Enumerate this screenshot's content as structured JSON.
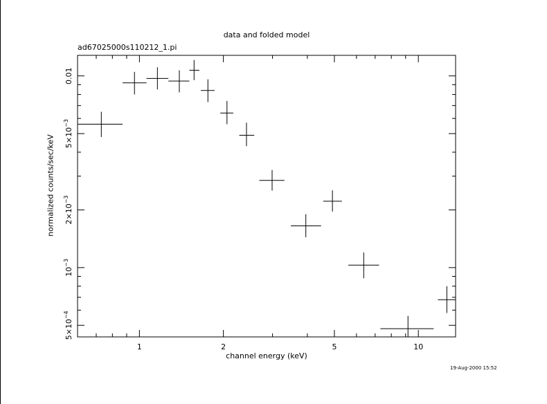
{
  "chart_data": {
    "type": "scatter",
    "title": "data and folded model",
    "subtitle": "ad67025000s110212_1.pi",
    "xlabel": "channel energy (keV)",
    "ylabel": "normalized counts/sec/keV",
    "x_scale": "log",
    "y_scale": "log",
    "xlim": [
      0.6,
      13.6
    ],
    "ylim": [
      0.000435,
      0.0128
    ],
    "x_ticks": [
      {
        "value": 1,
        "label": "1"
      },
      {
        "value": 2,
        "label": "2"
      },
      {
        "value": 5,
        "label": "5"
      },
      {
        "value": 10,
        "label": "10"
      }
    ],
    "y_ticks": [
      {
        "value": 0.01,
        "mant": "0.01",
        "exp": ""
      },
      {
        "value": 0.005,
        "mant": "5×10",
        "exp": "−3"
      },
      {
        "value": 0.002,
        "mant": "2×10",
        "exp": "−3"
      },
      {
        "value": 0.001,
        "mant": "10",
        "exp": "−3"
      },
      {
        "value": 0.0005,
        "mant": "5×10",
        "exp": "−4"
      }
    ],
    "grid": false,
    "points": [
      {
        "x": 0.73,
        "xlo": 0.6,
        "xhi": 0.87,
        "y": 0.0056,
        "ylo": 0.0048,
        "yhi": 0.0065
      },
      {
        "x": 0.96,
        "xlo": 0.87,
        "xhi": 1.06,
        "y": 0.0092,
        "ylo": 0.008,
        "yhi": 0.0105
      },
      {
        "x": 1.16,
        "xlo": 1.06,
        "xhi": 1.27,
        "y": 0.0097,
        "ylo": 0.0085,
        "yhi": 0.0111
      },
      {
        "x": 1.39,
        "xlo": 1.27,
        "xhi": 1.51,
        "y": 0.0094,
        "ylo": 0.0082,
        "yhi": 0.0107
      },
      {
        "x": 1.57,
        "xlo": 1.51,
        "xhi": 1.64,
        "y": 0.0107,
        "ylo": 0.0095,
        "yhi": 0.0121
      },
      {
        "x": 1.76,
        "xlo": 1.66,
        "xhi": 1.86,
        "y": 0.0084,
        "ylo": 0.0073,
        "yhi": 0.0096
      },
      {
        "x": 2.06,
        "xlo": 1.95,
        "xhi": 2.17,
        "y": 0.0064,
        "ylo": 0.0056,
        "yhi": 0.0074
      },
      {
        "x": 2.42,
        "xlo": 2.28,
        "xhi": 2.58,
        "y": 0.0049,
        "ylo": 0.0043,
        "yhi": 0.0057
      },
      {
        "x": 2.99,
        "xlo": 2.69,
        "xhi": 3.31,
        "y": 0.00285,
        "ylo": 0.00252,
        "yhi": 0.00323
      },
      {
        "x": 3.95,
        "xlo": 3.49,
        "xhi": 4.48,
        "y": 0.00165,
        "ylo": 0.00144,
        "yhi": 0.0019
      },
      {
        "x": 4.92,
        "xlo": 4.56,
        "xhi": 5.32,
        "y": 0.00222,
        "ylo": 0.00196,
        "yhi": 0.00253
      },
      {
        "x": 6.37,
        "xlo": 5.61,
        "xhi": 7.23,
        "y": 0.00103,
        "ylo": 0.00088,
        "yhi": 0.0012
      },
      {
        "x": 9.18,
        "xlo": 7.31,
        "xhi": 11.35,
        "y": 0.00048,
        "ylo": 0.000435,
        "yhi": 0.00056
      },
      {
        "x": 12.65,
        "xlo": 11.75,
        "xhi": 13.6,
        "y": 0.00068,
        "ylo": 0.00058,
        "yhi": 0.0008
      }
    ]
  },
  "timestamp": "19-Aug-2000 15:52"
}
